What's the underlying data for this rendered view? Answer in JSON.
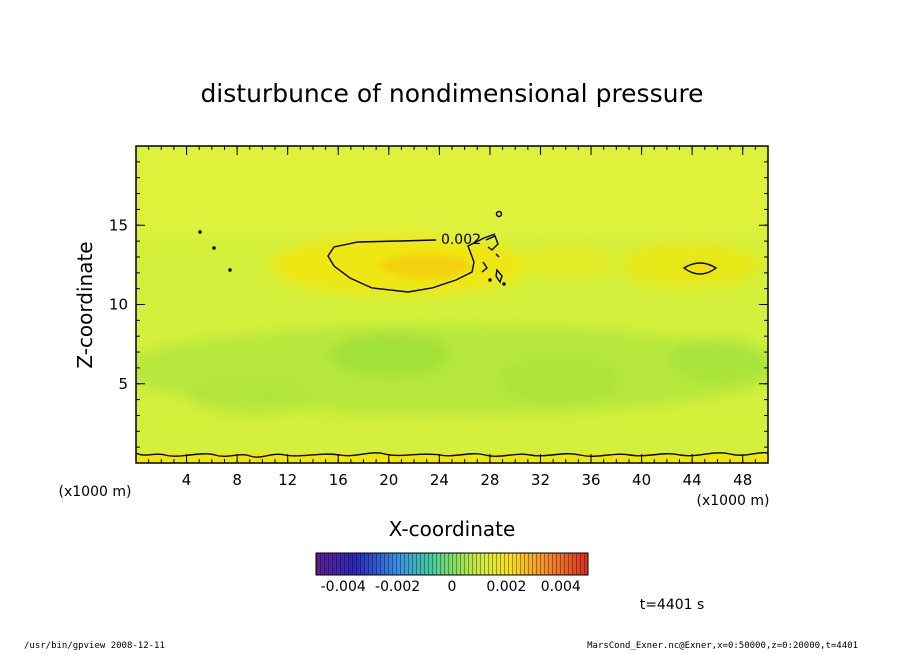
{
  "chart_data": {
    "type": "heatmap",
    "title": "disturbunce of nondimensional pressure",
    "xlabel": "X-coordinate",
    "ylabel": "Z-coordinate",
    "x_unit": "(x1000 m)",
    "y_unit": "(x1000 m)",
    "xlim": [
      0,
      50
    ],
    "ylim": [
      0,
      20
    ],
    "x_ticks": [
      4,
      8,
      12,
      16,
      20,
      24,
      28,
      32,
      36,
      40,
      44,
      48
    ],
    "y_ticks": [
      5,
      10,
      15
    ],
    "contour_label": "0.002",
    "colorbar": {
      "range": [
        -0.005,
        0.005
      ],
      "tick_labels": [
        "-0.004",
        "-0.002",
        "0",
        "0.002",
        "0.004"
      ],
      "tick_values": [
        -0.004,
        -0.002,
        0,
        0.002,
        0.004
      ]
    },
    "time_label": "t=4401 s",
    "colors": {
      "field_base": "#d4f03c",
      "field_high": "#f6e600",
      "field_peak": "#f4cc10",
      "field_low": "#a8e43a"
    }
  },
  "footer": {
    "left": "/usr/bin/gpview  2008-12-11",
    "right": "MarsCond_Exner.nc@Exner,x=0:50000,z=0:20000,t=4401"
  }
}
